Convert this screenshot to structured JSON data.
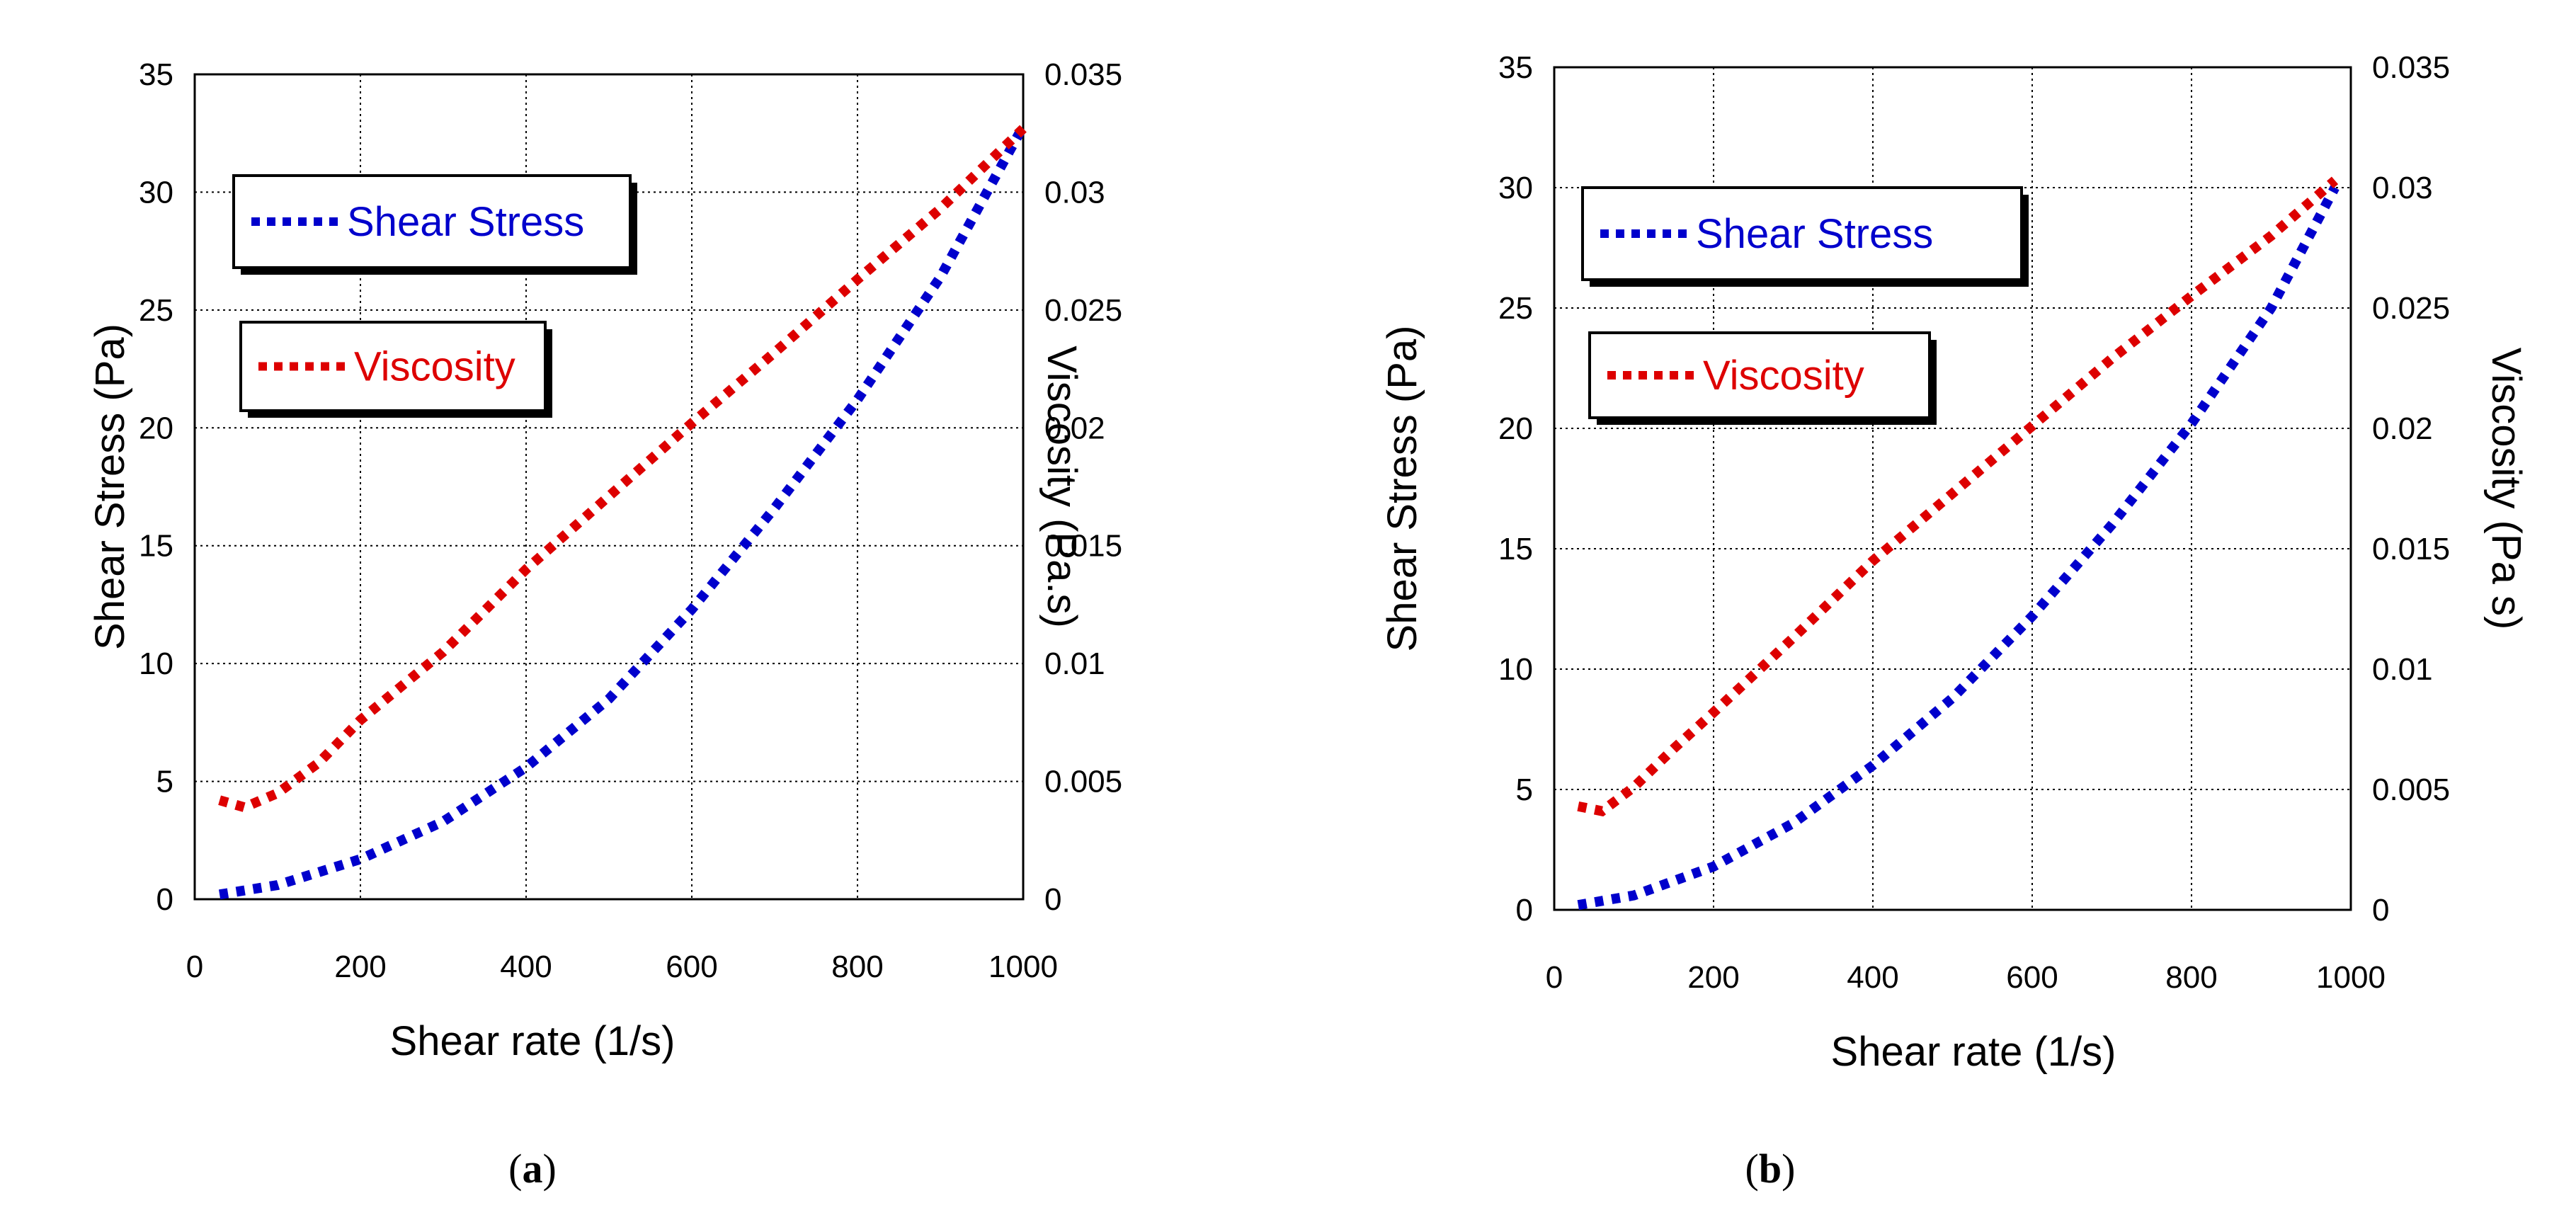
{
  "colors": {
    "stress": "#0000cc",
    "viscosity": "#dd0000",
    "axis": "#000000",
    "grid": "#000000"
  },
  "chart_data": [
    {
      "id": "a",
      "type": "line",
      "caption_letter": "a",
      "xlabel": "Shear rate (1/s)",
      "ylabel_left": "Shear Stress (Pa)",
      "ylabel_right": "Viscosity (Pa.s)",
      "xlim": [
        0,
        1000
      ],
      "ylim_left": [
        0,
        35
      ],
      "ylim_right": [
        0,
        0.035
      ],
      "x_ticks": [
        "0",
        "200",
        "400",
        "600",
        "800",
        "1000"
      ],
      "y_ticks_left": [
        "0",
        "5",
        "10",
        "15",
        "20",
        "25",
        "30",
        "35"
      ],
      "y_ticks_right": [
        "0",
        "0.005",
        "0.01",
        "0.015",
        "0.02",
        "0.025",
        "0.03",
        "0.035"
      ],
      "grid": true,
      "legend": [
        "Shear Stress",
        "Viscosity"
      ],
      "series": [
        {
          "name": "Shear Stress",
          "axis": "left",
          "x": [
            30,
            100,
            200,
            300,
            400,
            500,
            600,
            700,
            800,
            900,
            1000
          ],
          "y": [
            0.2,
            0.6,
            1.7,
            3.3,
            5.6,
            8.5,
            12.3,
            16.6,
            21.2,
            26.4,
            32.8
          ]
        },
        {
          "name": "Viscosity",
          "axis": "right",
          "x": [
            30,
            60,
            100,
            150,
            200,
            300,
            400,
            500,
            600,
            700,
            800,
            900,
            1000
          ],
          "y": [
            0.0042,
            0.0039,
            0.0045,
            0.0058,
            0.0076,
            0.0105,
            0.014,
            0.0171,
            0.0202,
            0.0232,
            0.0263,
            0.0293,
            0.0327
          ]
        }
      ]
    },
    {
      "id": "b",
      "type": "line",
      "caption_letter": "b",
      "xlabel": "Shear rate (1/s)",
      "ylabel_left": "Shear Stress (Pa)",
      "ylabel_right": "Viscosity (Pa s)",
      "xlim": [
        0,
        1000
      ],
      "ylim_left": [
        0,
        35
      ],
      "ylim_right": [
        0,
        0.035
      ],
      "x_ticks": [
        "0",
        "200",
        "400",
        "600",
        "800",
        "1000"
      ],
      "y_ticks_left": [
        "0",
        "5",
        "10",
        "15",
        "20",
        "25",
        "30",
        "35"
      ],
      "y_ticks_right": [
        "0",
        "0.005",
        "0.01",
        "0.015",
        "0.02",
        "0.025",
        "0.03",
        "0.035"
      ],
      "grid": true,
      "legend": [
        "Shear Stress",
        "Viscosity"
      ],
      "series": [
        {
          "name": "Shear Stress",
          "axis": "left",
          "x": [
            30,
            100,
            200,
            300,
            400,
            500,
            600,
            700,
            800,
            900,
            980
          ],
          "y": [
            0.2,
            0.6,
            1.8,
            3.6,
            6.0,
            8.8,
            12.2,
            16.0,
            20.2,
            25.0,
            30.0
          ]
        },
        {
          "name": "Viscosity",
          "axis": "right",
          "x": [
            30,
            60,
            100,
            150,
            200,
            300,
            400,
            500,
            600,
            700,
            800,
            900,
            980
          ],
          "y": [
            0.0043,
            0.0041,
            0.0051,
            0.0067,
            0.0082,
            0.0113,
            0.0145,
            0.0173,
            0.0201,
            0.0229,
            0.0255,
            0.028,
            0.0303
          ]
        }
      ]
    }
  ]
}
